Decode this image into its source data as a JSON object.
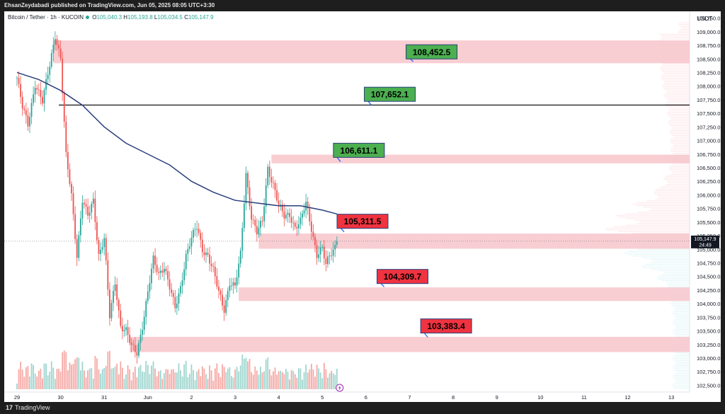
{
  "publish_info": "EhsanZeydabadi published on TradingView.com, Jun 05, 2025 08:05 UTC+3:30",
  "symbol": {
    "name": "Bitcoin / Tether · 1h · KUCOIN",
    "o_label": "O",
    "o": "105,040.3",
    "h_label": "H",
    "h": "105,193.8",
    "l_label": "L",
    "l": "105,034.5",
    "c_label": "C",
    "c": "105,147.9"
  },
  "currency": "USDT",
  "price_tag": {
    "value": "105,147.9",
    "countdown": "24:49"
  },
  "brand": {
    "logo": "17",
    "name": "TradingView"
  },
  "colors": {
    "up": "#26a69a",
    "down": "#ef5350",
    "ma": "#2a3f7c",
    "zone": "#f7c5cb",
    "label_green": "#4caf50",
    "label_red": "#ef3340"
  },
  "chart_data": {
    "type": "candlestick",
    "y_axis": {
      "min": 102375,
      "max": 109375,
      "ticks": [
        "109,250.0",
        "109,000.0",
        "108,750.0",
        "108,500.0",
        "108,250.0",
        "108,000.0",
        "107,750.0",
        "107,500.0",
        "107,250.0",
        "107,000.0",
        "106,750.0",
        "106,500.0",
        "106,250.0",
        "106,000.0",
        "105,750.0",
        "105,500.0",
        "105,250.0",
        "105,000.0",
        "104,750.0",
        "104,500.0",
        "104,250.0",
        "104,000.0",
        "103,750.0",
        "103,500.0",
        "103,250.0",
        "103,000.0",
        "102,750.0",
        "102,500.0"
      ],
      "tick_values": [
        109250,
        109000,
        108750,
        108500,
        108250,
        108000,
        107750,
        107500,
        107250,
        107000,
        106750,
        106500,
        106250,
        106000,
        105750,
        105500,
        105250,
        105000,
        104750,
        104500,
        104250,
        104000,
        103750,
        103500,
        103250,
        103000,
        102750,
        102500
      ]
    },
    "x_axis": {
      "ticks": [
        "29",
        "30",
        "31",
        "Jun",
        "2",
        "3",
        "4",
        "5",
        "6",
        "7",
        "8",
        "9",
        "10",
        "11",
        "12",
        "13"
      ],
      "tick_positions": [
        0,
        24,
        48,
        72,
        96,
        120,
        144,
        168,
        192,
        216,
        240,
        264,
        288,
        312,
        336,
        360
      ]
    },
    "last_price": 105147.9,
    "horizontal_line": 107652.1,
    "zones": [
      {
        "from": 108420,
        "to": 108840,
        "start_bar": 20
      },
      {
        "from": 106580,
        "to": 106740,
        "start_bar": 140
      },
      {
        "from": 105010,
        "to": 105290,
        "start_bar": 133
      },
      {
        "from": 104050,
        "to": 104300,
        "start_bar": 122
      },
      {
        "from": 103110,
        "to": 103390,
        "start_bar": 62
      }
    ],
    "annotations": [
      {
        "text": "108,452.5",
        "color": "green",
        "bar": 225,
        "price": 108630,
        "arrow_bar": 218,
        "arrow_price": 108450
      },
      {
        "text": "107,652.1",
        "color": "green",
        "bar": 202,
        "price": 107850,
        "arrow_bar": 195,
        "arrow_price": 107652
      },
      {
        "text": "106,611.1",
        "color": "green",
        "bar": 185,
        "price": 106820,
        "arrow_bar": 178,
        "arrow_price": 106611
      },
      {
        "text": "105,311.5",
        "color": "red",
        "bar": 187,
        "price": 105515,
        "arrow_bar": 180,
        "arrow_price": 105320
      },
      {
        "text": "104,309.7",
        "color": "red",
        "bar": 209,
        "price": 104500,
        "arrow_bar": 202,
        "arrow_price": 104310
      },
      {
        "text": "103,383.4",
        "color": "red",
        "bar": 233,
        "price": 103590,
        "arrow_bar": 226,
        "arrow_price": 103383
      }
    ],
    "key_points": [
      [
        0,
        108150
      ],
      [
        3,
        107600
      ],
      [
        6,
        107300
      ],
      [
        10,
        108050
      ],
      [
        14,
        107700
      ],
      [
        18,
        108400
      ],
      [
        21,
        108950
      ],
      [
        24,
        108500
      ],
      [
        27,
        106700
      ],
      [
        30,
        106000
      ],
      [
        33,
        104900
      ],
      [
        36,
        105900
      ],
      [
        39,
        105600
      ],
      [
        42,
        105900
      ],
      [
        45,
        104900
      ],
      [
        48,
        105200
      ],
      [
        51,
        103750
      ],
      [
        54,
        104400
      ],
      [
        57,
        103600
      ],
      [
        60,
        103500
      ],
      [
        63,
        103200
      ],
      [
        66,
        103100
      ],
      [
        69,
        103600
      ],
      [
        72,
        104200
      ],
      [
        75,
        104800
      ],
      [
        78,
        104550
      ],
      [
        81,
        104700
      ],
      [
        84,
        104300
      ],
      [
        87,
        103900
      ],
      [
        90,
        104300
      ],
      [
        93,
        104900
      ],
      [
        96,
        105200
      ],
      [
        99,
        105400
      ],
      [
        102,
        105000
      ],
      [
        105,
        104900
      ],
      [
        108,
        104600
      ],
      [
        111,
        104200
      ],
      [
        114,
        103900
      ],
      [
        117,
        104400
      ],
      [
        120,
        104300
      ],
      [
        123,
        104900
      ],
      [
        126,
        106400
      ],
      [
        129,
        105600
      ],
      [
        132,
        105300
      ],
      [
        135,
        105500
      ],
      [
        138,
        106500
      ],
      [
        141,
        106200
      ],
      [
        144,
        105800
      ],
      [
        147,
        105600
      ],
      [
        150,
        105650
      ],
      [
        153,
        105400
      ],
      [
        156,
        105500
      ],
      [
        159,
        105850
      ],
      [
        162,
        105400
      ],
      [
        165,
        104900
      ],
      [
        168,
        105000
      ],
      [
        170,
        104700
      ],
      [
        172,
        104900
      ],
      [
        174,
        105000
      ],
      [
        176,
        105147.9
      ]
    ],
    "moving_average": [
      [
        0,
        108250
      ],
      [
        12,
        108120
      ],
      [
        24,
        107920
      ],
      [
        36,
        107650
      ],
      [
        48,
        107250
      ],
      [
        60,
        106950
      ],
      [
        72,
        106750
      ],
      [
        84,
        106550
      ],
      [
        96,
        106250
      ],
      [
        108,
        106050
      ],
      [
        120,
        105900
      ],
      [
        132,
        105850
      ],
      [
        144,
        105800
      ],
      [
        156,
        105800
      ],
      [
        168,
        105720
      ],
      [
        176,
        105650
      ]
    ],
    "volume_profile_max_price": 108700
  }
}
